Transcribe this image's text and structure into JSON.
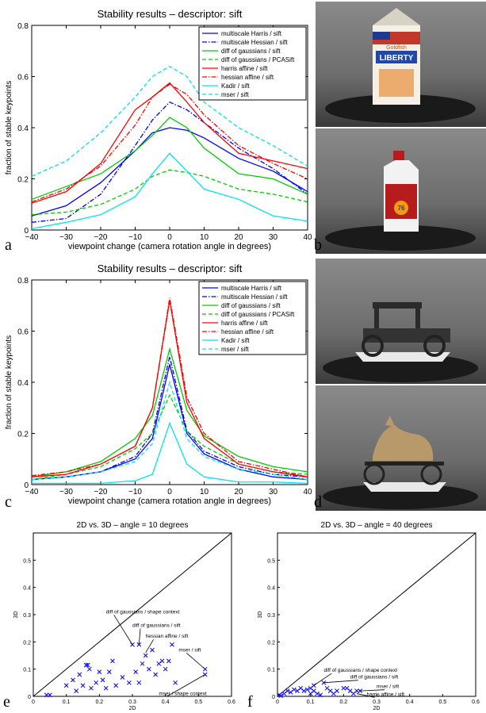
{
  "panel_letters": {
    "a": "a",
    "b": "b",
    "c": "c",
    "d": "d",
    "e": "e",
    "f": "f"
  },
  "colors": {
    "blue": "#0000ff",
    "green": "#00cc00",
    "red": "#ff0000",
    "cyan": "#00e6e6",
    "black": "#000000"
  },
  "photos": {
    "b_top": {
      "subject": "milk-carton",
      "label_brand": "Goldfish",
      "label_text": "LIBERTY"
    },
    "b_bottom": {
      "subject": "oil-bottle",
      "label_text": "76"
    },
    "d_top": {
      "subject": "toy-car"
    },
    "d_bottom": {
      "subject": "toy-dog-on-wheels"
    }
  },
  "chart_data": [
    {
      "id": "a",
      "type": "line",
      "title": "Stability results – descriptor: sift",
      "xlabel": "viewpoint change (camera rotation angle in degrees)",
      "ylabel": "fraction of stable keypoints",
      "xlim": [
        -40,
        40
      ],
      "ylim": [
        0,
        0.8
      ],
      "xticks": [
        "−40",
        "−30",
        "−20",
        "−10",
        "0",
        "10",
        "20",
        "30",
        "40"
      ],
      "yticks": [
        "0",
        "0.2",
        "0.4",
        "0.6",
        "0.8"
      ],
      "legend_position": "top-right",
      "x": [
        -40,
        -30,
        -20,
        -10,
        -5,
        0,
        5,
        10,
        20,
        30,
        40
      ],
      "series": [
        {
          "name": "multiscale Harris / sift",
          "color": "blue",
          "dash": "solid",
          "values": [
            0.055,
            0.095,
            0.185,
            0.31,
            0.38,
            0.4,
            0.39,
            0.36,
            0.28,
            0.23,
            0.15
          ]
        },
        {
          "name": "multiscale Hessian / sift",
          "color": "blue",
          "dash": "dashdot",
          "values": [
            0.03,
            0.045,
            0.14,
            0.33,
            0.43,
            0.5,
            0.47,
            0.42,
            0.32,
            0.24,
            0.14
          ]
        },
        {
          "name": "diff of gaussians / sift",
          "color": "green",
          "dash": "solid",
          "values": [
            0.12,
            0.17,
            0.22,
            0.31,
            0.37,
            0.44,
            0.4,
            0.32,
            0.22,
            0.2,
            0.14
          ]
        },
        {
          "name": "diff of gaussians / PCASift",
          "color": "green",
          "dash": "dashed",
          "values": [
            0.06,
            0.07,
            0.1,
            0.16,
            0.21,
            0.235,
            0.225,
            0.21,
            0.16,
            0.14,
            0.11
          ]
        },
        {
          "name": "harris affine / sift",
          "color": "red",
          "dash": "solid",
          "values": [
            0.105,
            0.15,
            0.26,
            0.47,
            0.52,
            0.575,
            0.5,
            0.42,
            0.3,
            0.27,
            0.24
          ]
        },
        {
          "name": "hessian affine / sift",
          "color": "red",
          "dash": "dashdot",
          "values": [
            0.11,
            0.16,
            0.25,
            0.41,
            0.52,
            0.57,
            0.53,
            0.45,
            0.33,
            0.26,
            0.2
          ]
        },
        {
          "name": "Kadir / sift",
          "color": "cyan",
          "dash": "solid",
          "values": [
            0.005,
            0.03,
            0.06,
            0.13,
            0.22,
            0.3,
            0.23,
            0.16,
            0.12,
            0.055,
            0.035
          ]
        },
        {
          "name": "mser / sift",
          "color": "cyan",
          "dash": "dashed",
          "values": [
            0.21,
            0.27,
            0.38,
            0.52,
            0.6,
            0.64,
            0.6,
            0.5,
            0.4,
            0.33,
            0.25
          ]
        }
      ]
    },
    {
      "id": "c",
      "type": "line",
      "title": "Stability results – descriptor: sift",
      "xlabel": "viewpoint change (camera rotation angle in degrees)",
      "ylabel": "fraction of stable keypoints",
      "xlim": [
        -40,
        40
      ],
      "ylim": [
        0,
        0.8
      ],
      "xticks": [
        "−40",
        "−30",
        "−20",
        "−10",
        "0",
        "10",
        "20",
        "30",
        "40"
      ],
      "yticks": [
        "0",
        "0.2",
        "0.4",
        "0.6",
        "0.8"
      ],
      "legend_position": "top-right",
      "x": [
        -40,
        -30,
        -20,
        -10,
        -5,
        0,
        5,
        10,
        20,
        30,
        40
      ],
      "series": [
        {
          "name": "multiscale Harris / sift",
          "color": "blue",
          "dash": "solid",
          "values": [
            0.02,
            0.03,
            0.05,
            0.1,
            0.18,
            0.47,
            0.2,
            0.12,
            0.06,
            0.03,
            0.02
          ]
        },
        {
          "name": "multiscale Hessian / sift",
          "color": "blue",
          "dash": "dashdot",
          "values": [
            0.02,
            0.03,
            0.05,
            0.11,
            0.2,
            0.5,
            0.21,
            0.13,
            0.07,
            0.04,
            0.03
          ]
        },
        {
          "name": "diff of gaussians / sift",
          "color": "green",
          "dash": "solid",
          "values": [
            0.03,
            0.05,
            0.09,
            0.18,
            0.27,
            0.53,
            0.29,
            0.19,
            0.11,
            0.07,
            0.05
          ]
        },
        {
          "name": "diff of gaussians / PCASift",
          "color": "green",
          "dash": "dashed",
          "values": [
            0.02,
            0.04,
            0.07,
            0.14,
            0.2,
            0.35,
            0.21,
            0.15,
            0.08,
            0.05,
            0.04
          ]
        },
        {
          "name": "harris affine / sift",
          "color": "red",
          "dash": "solid",
          "values": [
            0.03,
            0.04,
            0.08,
            0.15,
            0.3,
            0.72,
            0.32,
            0.18,
            0.08,
            0.05,
            0.03
          ]
        },
        {
          "name": "hessian affine / sift",
          "color": "red",
          "dash": "dashdot",
          "values": [
            0.035,
            0.05,
            0.08,
            0.15,
            0.3,
            0.73,
            0.34,
            0.2,
            0.09,
            0.06,
            0.03
          ]
        },
        {
          "name": "Kadir / sift",
          "color": "cyan",
          "dash": "solid",
          "values": [
            0.005,
            0.005,
            0.005,
            0.015,
            0.04,
            0.24,
            0.08,
            0.03,
            0.01,
            0.01,
            0.005
          ]
        },
        {
          "name": "mser / sift",
          "color": "cyan",
          "dash": "dashed",
          "values": [
            0.02,
            0.03,
            0.05,
            0.09,
            0.16,
            0.4,
            0.18,
            0.11,
            0.06,
            0.04,
            0.02
          ]
        }
      ]
    },
    {
      "id": "e",
      "type": "scatter",
      "title": "2D vs. 3D – angle = 10 degrees",
      "xlabel": "2D",
      "ylabel": "3D",
      "xlim": [
        0,
        0.6
      ],
      "ylim": [
        0,
        0.6
      ],
      "xticks": [
        "0",
        "0.1",
        "0.2",
        "0.3",
        "0.4",
        "0.5",
        "0.6"
      ],
      "yticks": [
        "0",
        "0.1",
        "0.2",
        "0.3",
        "0.4",
        "0.5"
      ],
      "diagonal": true,
      "points": [
        [
          0.04,
          0.005
        ],
        [
          0.05,
          0.005
        ],
        [
          0.1,
          0.04
        ],
        [
          0.12,
          0.06
        ],
        [
          0.13,
          0.02
        ],
        [
          0.14,
          0.08
        ],
        [
          0.15,
          0.04
        ],
        [
          0.16,
          0.115
        ],
        [
          0.165,
          0.115
        ],
        [
          0.17,
          0.1
        ],
        [
          0.175,
          0.03
        ],
        [
          0.19,
          0.05
        ],
        [
          0.2,
          0.09
        ],
        [
          0.21,
          0.06
        ],
        [
          0.22,
          0.03
        ],
        [
          0.23,
          0.09
        ],
        [
          0.24,
          0.13
        ],
        [
          0.25,
          0.04
        ],
        [
          0.27,
          0.07
        ],
        [
          0.29,
          0.05
        ],
        [
          0.3,
          0.19
        ],
        [
          0.31,
          0.09
        ],
        [
          0.32,
          0.19
        ],
        [
          0.32,
          0.05
        ],
        [
          0.33,
          0.12
        ],
        [
          0.34,
          0.15
        ],
        [
          0.35,
          0.1
        ],
        [
          0.36,
          0.17
        ],
        [
          0.37,
          0.08
        ],
        [
          0.38,
          0.12
        ],
        [
          0.39,
          0.13
        ],
        [
          0.4,
          0.1
        ],
        [
          0.41,
          0.13
        ],
        [
          0.42,
          0.19
        ],
        [
          0.43,
          0.05
        ],
        [
          0.52,
          0.1
        ],
        [
          0.52,
          0.08
        ]
      ],
      "annotations": [
        {
          "text": "diff of gaussians / shape context",
          "tx": 0.22,
          "ty": 0.305,
          "px": 0.3,
          "py": 0.19
        },
        {
          "text": "diff of gaussians / sift",
          "tx": 0.3,
          "ty": 0.255,
          "px": 0.32,
          "py": 0.19
        },
        {
          "text": "hessian affine / sift",
          "tx": 0.34,
          "ty": 0.215,
          "px": 0.34,
          "py": 0.16
        },
        {
          "text": "mser / sift",
          "tx": 0.44,
          "ty": 0.165,
          "px": 0.52,
          "py": 0.1
        },
        {
          "text": "mser / shape context",
          "tx": 0.38,
          "ty": 0.005,
          "px": 0.52,
          "py": 0.08
        }
      ]
    },
    {
      "id": "f",
      "type": "scatter",
      "title": "2D vs. 3D – angle = 40 degrees",
      "xlabel": "2D",
      "ylabel": "3D",
      "xlim": [
        0,
        0.6
      ],
      "ylim": [
        0,
        0.6
      ],
      "xticks": [
        "0",
        "0.1",
        "0.2",
        "0.3",
        "0.4",
        "0.5",
        "0.6"
      ],
      "yticks": [
        "0",
        "0.1",
        "0.2",
        "0.3",
        "0.4",
        "0.5"
      ],
      "diagonal": true,
      "points": [
        [
          0.005,
          0.005
        ],
        [
          0.01,
          0.002
        ],
        [
          0.02,
          0.01
        ],
        [
          0.03,
          0.02
        ],
        [
          0.04,
          0.015
        ],
        [
          0.05,
          0.025
        ],
        [
          0.06,
          0.02
        ],
        [
          0.07,
          0.03
        ],
        [
          0.08,
          0.02
        ],
        [
          0.09,
          0.025
        ],
        [
          0.1,
          0.03
        ],
        [
          0.1,
          0.01
        ],
        [
          0.11,
          0.04
        ],
        [
          0.11,
          0.02
        ],
        [
          0.12,
          0.01
        ],
        [
          0.13,
          0.005
        ],
        [
          0.14,
          0.05
        ],
        [
          0.15,
          0.03
        ],
        [
          0.16,
          0.02
        ],
        [
          0.17,
          0.01
        ],
        [
          0.18,
          0.02
        ],
        [
          0.2,
          0.03
        ],
        [
          0.21,
          0.03
        ],
        [
          0.22,
          0.02
        ],
        [
          0.23,
          0.01
        ],
        [
          0.24,
          0.02
        ],
        [
          0.25,
          0.02
        ]
      ],
      "annotations": [
        {
          "text": "diff of gaussians / shape context",
          "tx": 0.14,
          "ty": 0.09,
          "px": 0.11,
          "py": 0.04
        },
        {
          "text": "diff of gaussians / sift",
          "tx": 0.22,
          "ty": 0.065,
          "px": 0.14,
          "py": 0.05
        },
        {
          "text": "mser / sift",
          "tx": 0.3,
          "ty": 0.03,
          "px": 0.25,
          "py": 0.02
        },
        {
          "text": "harris affine / sift",
          "tx": 0.27,
          "ty": 0.002,
          "px": 0.24,
          "py": 0.01
        }
      ]
    }
  ]
}
